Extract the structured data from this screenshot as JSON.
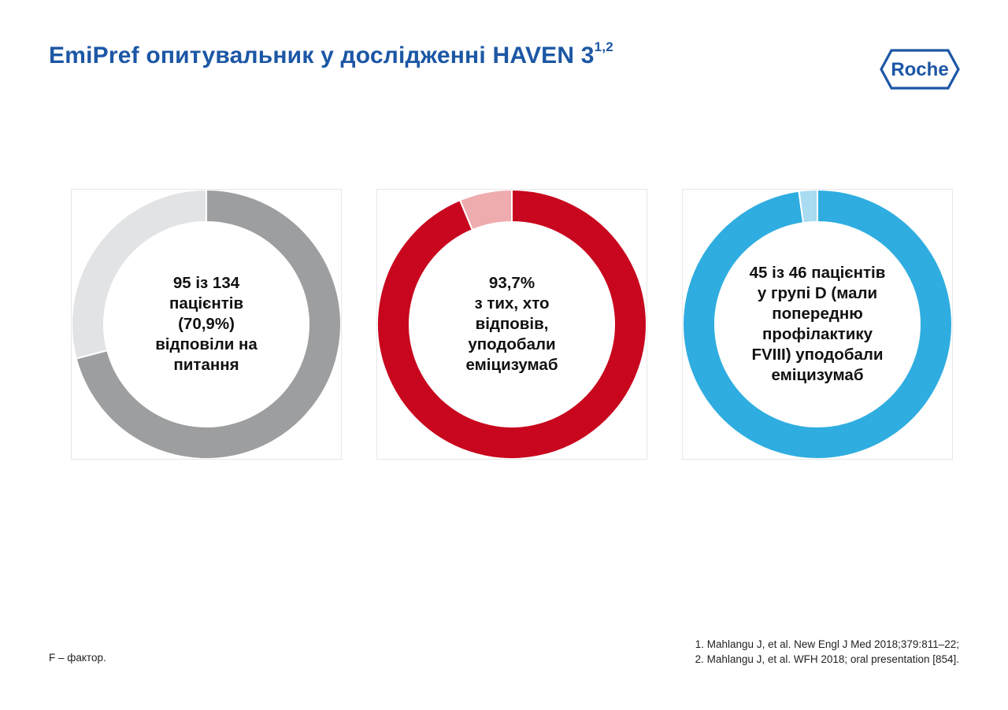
{
  "title": {
    "text": "EmiPref опитувальник у дослідженні HAVEN 3",
    "superscript": "1,2"
  },
  "logo": {
    "text": "Roche",
    "color": "#1c57a5"
  },
  "chart_data": [
    {
      "type": "pie",
      "label": "95 із 134\nпацієнтів\n(70,9%)\nвідповіли на\nпитання",
      "values": [
        70.9,
        29.1
      ],
      "colors": [
        "#9d9e9f",
        "#e2e3e5"
      ]
    },
    {
      "type": "pie",
      "label": "93,7%\nз тих, хто\nвідповів,\nуподобали\nеміцизумаб",
      "values": [
        93.7,
        6.3
      ],
      "colors": [
        "#c8071e",
        "#eeacae"
      ]
    },
    {
      "type": "pie",
      "label": "45 із 46 пацієнтів\nу групі D (мали\nпопередню\nпрофілактику\nFVIII) уподобали\nеміцизумаб",
      "values": [
        97.8,
        2.2
      ],
      "colors": [
        "#2fade0",
        "#a9dbf1"
      ]
    }
  ],
  "footnote": "F – фактор.",
  "references": [
    "1. Mahlangu J, et al. New Engl J Med 2018;379:811–22;",
    "2. Mahlangu J, et al. WFH 2018; oral presentation [854]."
  ]
}
